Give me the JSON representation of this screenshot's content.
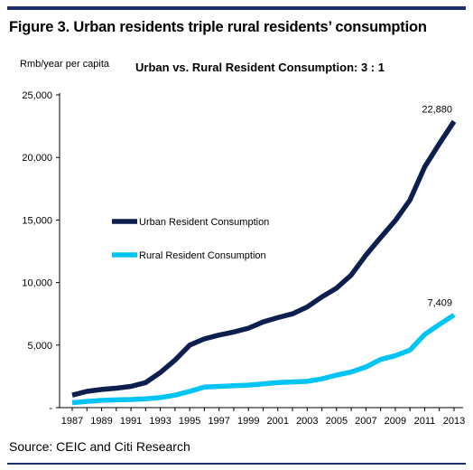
{
  "figure": {
    "title": "Figure 3. Urban residents triple rural residents’ consumption",
    "source": "Source: CEIC and Citi Research"
  },
  "colors": {
    "rule": "#1b2f6e",
    "urban": "#0d1f4f",
    "rural": "#00c5f4",
    "axis": "#000000"
  },
  "chart_data": {
    "type": "line",
    "title": "Urban vs. Rural Resident Consumption: 3 : 1",
    "ylabel": "Rmb/year per capita",
    "xlabel": "",
    "ylim": [
      0,
      25000
    ],
    "yticks": [
      0,
      5000,
      10000,
      15000,
      20000,
      25000
    ],
    "ytick_labels": [
      "-",
      "5,000",
      "10,000",
      "15,000",
      "20,000",
      "25,000"
    ],
    "xtick_labels": [
      "1987",
      "1989",
      "1991",
      "1993",
      "1995",
      "1997",
      "1999",
      "2001",
      "2003",
      "2005",
      "2007",
      "2009",
      "2011",
      "2013"
    ],
    "grid": false,
    "legend_position": "center-left",
    "x": [
      1987,
      1988,
      1989,
      1990,
      1991,
      1992,
      1993,
      1994,
      1995,
      1996,
      1997,
      1998,
      1999,
      2000,
      2001,
      2002,
      2003,
      2004,
      2005,
      2006,
      2007,
      2008,
      2009,
      2010,
      2011,
      2012,
      2013
    ],
    "series": [
      {
        "name": "Urban Resident Consumption",
        "color": "#0d1f4f",
        "values": [
          1000,
          1300,
          1450,
          1550,
          1700,
          2000,
          2800,
          3800,
          5000,
          5500,
          5800,
          6050,
          6350,
          6850,
          7200,
          7500,
          8050,
          8850,
          9550,
          10600,
          12200,
          13600,
          14950,
          16600,
          19250,
          21100,
          22880
        ],
        "end_label": "22,880"
      },
      {
        "name": "Rural Resident Consumption",
        "color": "#00c5f4",
        "values": [
          400,
          500,
          580,
          620,
          650,
          710,
          800,
          1000,
          1300,
          1650,
          1700,
          1750,
          1800,
          1900,
          2000,
          2050,
          2100,
          2300,
          2600,
          2850,
          3250,
          3850,
          4150,
          4600,
          5850,
          6650,
          7409
        ],
        "end_label": "7,409"
      }
    ]
  }
}
